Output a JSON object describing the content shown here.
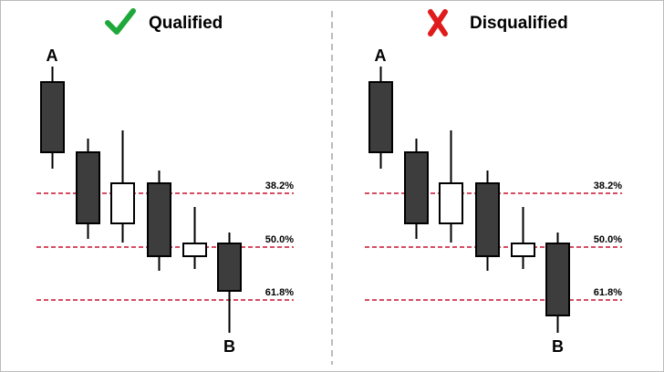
{
  "panels": [
    {
      "title": "Qualified",
      "point_a": "A",
      "point_b": "B",
      "levels": [
        "38.2%",
        "50.0%",
        "61.8%"
      ]
    },
    {
      "title": "Disqualified",
      "point_a": "A",
      "point_b": "B",
      "levels": [
        "38.2%",
        "50.0%",
        "61.8%"
      ]
    }
  ]
}
